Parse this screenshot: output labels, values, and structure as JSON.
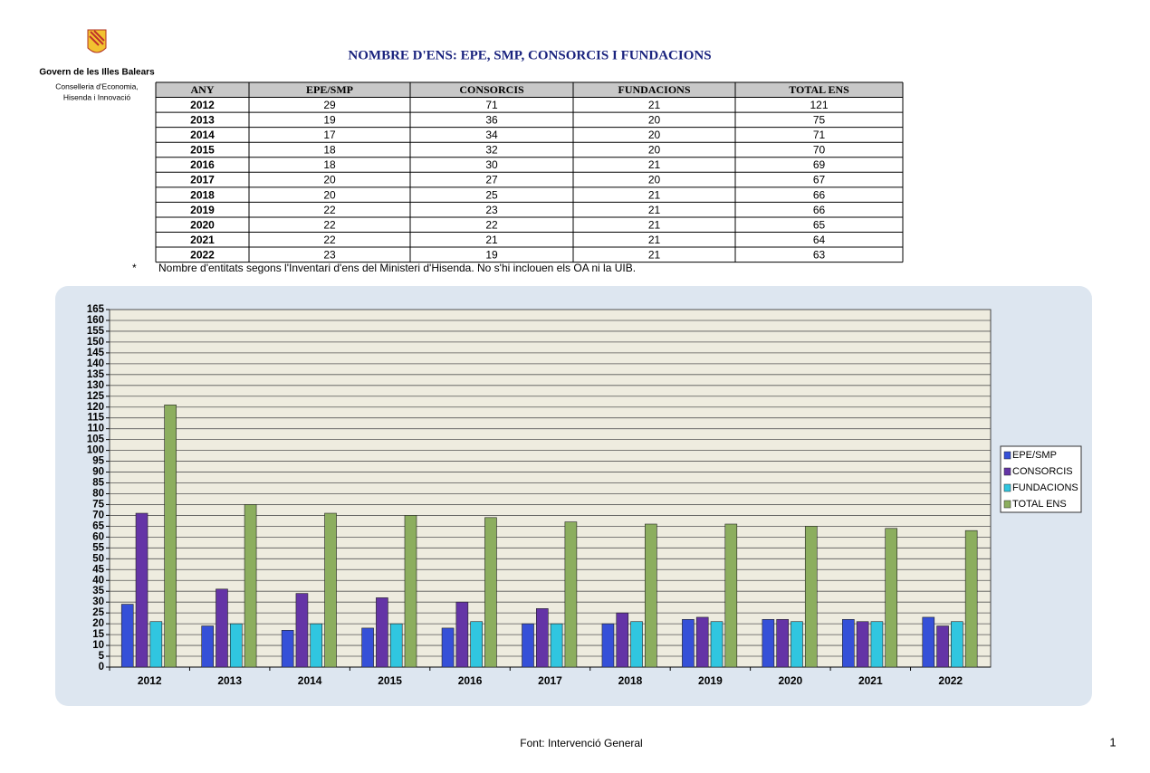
{
  "header": {
    "org": "Govern de les Illes Balears",
    "dept_line1": "Conselleria d'Economia,",
    "dept_line2": "Hisenda i Innovació",
    "title": "NOMBRE D'ENS: EPE, SMP, CONSORCIS I FUNDACIONS"
  },
  "table": {
    "header": [
      "ANY",
      "EPE/SMP",
      "CONSORCIS",
      "FUNDACIONS",
      "TOTAL ENS"
    ],
    "rows": [
      [
        2012,
        29,
        71,
        21,
        121
      ],
      [
        2013,
        19,
        36,
        20,
        75
      ],
      [
        2014,
        17,
        34,
        20,
        71
      ],
      [
        2015,
        18,
        32,
        20,
        70
      ],
      [
        2016,
        18,
        30,
        21,
        69
      ],
      [
        2017,
        20,
        27,
        20,
        67
      ],
      [
        2018,
        20,
        25,
        21,
        66
      ],
      [
        2019,
        22,
        23,
        21,
        66
      ],
      [
        2020,
        22,
        22,
        21,
        65
      ],
      [
        2021,
        22,
        21,
        21,
        64
      ],
      [
        2022,
        23,
        19,
        21,
        63
      ]
    ]
  },
  "note": {
    "marker": "*",
    "text": "Nombre d'entitats segons l'Inventari d'ens del Ministeri d'Hisenda. No s'hi inclouen els OA ni la UIB."
  },
  "chart_data": {
    "type": "bar",
    "categories": [
      "2012",
      "2013",
      "2014",
      "2015",
      "2016",
      "2017",
      "2018",
      "2019",
      "2020",
      "2021",
      "2022"
    ],
    "series": [
      {
        "name": "EPE/SMP",
        "color": "#3550d8",
        "values": [
          29,
          19,
          17,
          18,
          18,
          20,
          20,
          22,
          22,
          22,
          23
        ]
      },
      {
        "name": "CONSORCIS",
        "color": "#6434a6",
        "values": [
          71,
          36,
          34,
          32,
          30,
          27,
          25,
          23,
          22,
          21,
          19
        ]
      },
      {
        "name": "FUNDACIONS",
        "color": "#30c6e0",
        "values": [
          21,
          20,
          20,
          20,
          21,
          20,
          21,
          21,
          21,
          21,
          21
        ]
      },
      {
        "name": "TOTAL ENS",
        "color": "#8cae5e",
        "values": [
          121,
          75,
          71,
          70,
          69,
          67,
          66,
          66,
          65,
          64,
          63
        ]
      }
    ],
    "ylim": [
      0,
      165
    ],
    "yticks": [
      0,
      5,
      10,
      15,
      20,
      25,
      30,
      35,
      40,
      45,
      50,
      55,
      60,
      65,
      70,
      75,
      80,
      85,
      90,
      95,
      100,
      105,
      110,
      115,
      120,
      125,
      130,
      135,
      140,
      145,
      150,
      155,
      160,
      165
    ],
    "grid": true,
    "legend": "right"
  },
  "footer": {
    "source": "Font: Intervenció General",
    "page": "1"
  }
}
